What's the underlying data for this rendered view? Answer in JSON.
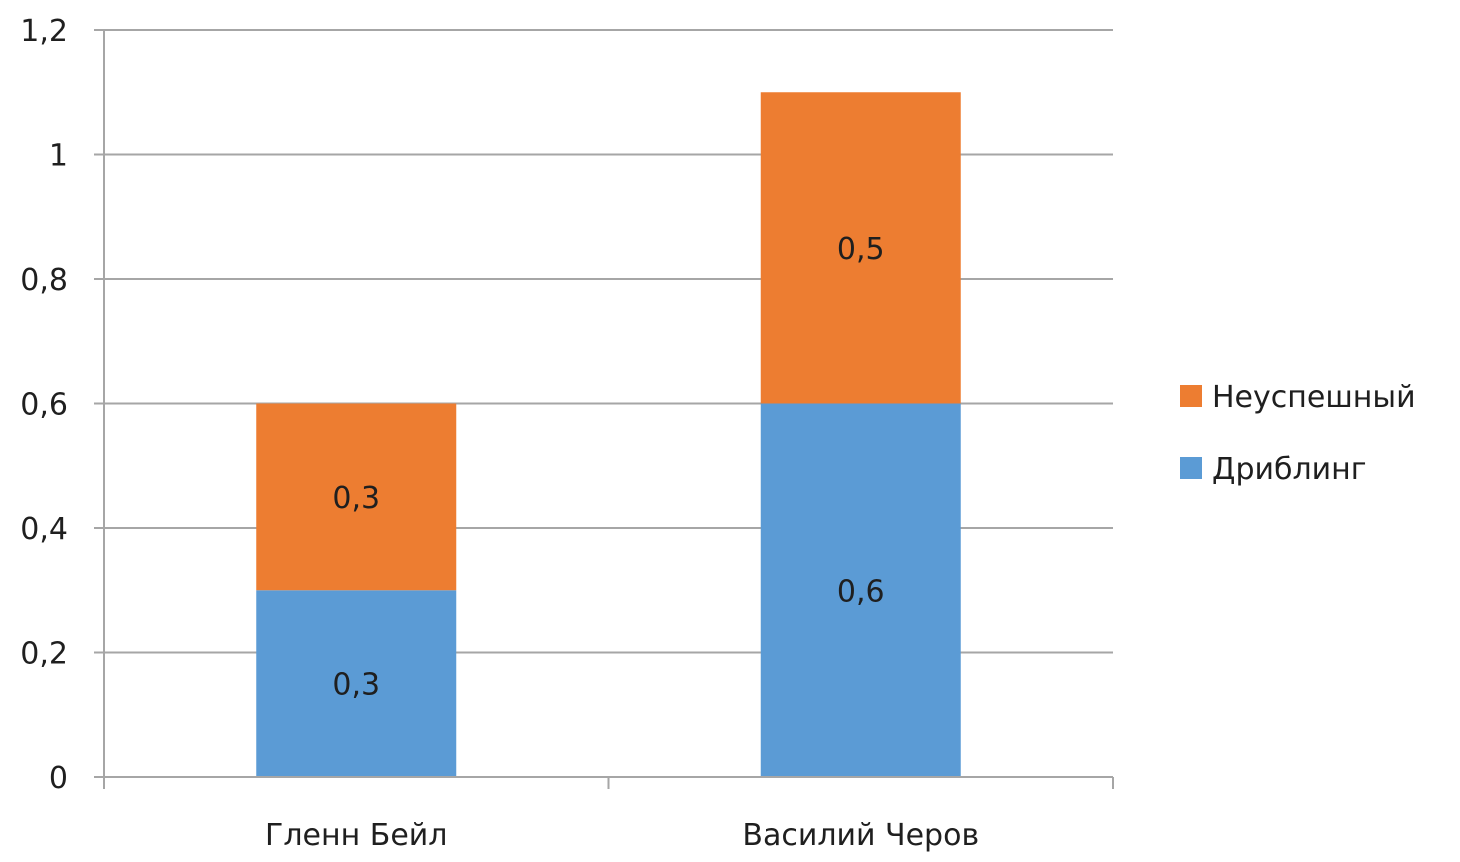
{
  "chart_data": {
    "type": "bar",
    "stacked": true,
    "categories": [
      "Гленн Бейл",
      "Василий Черов"
    ],
    "series": [
      {
        "name": "Дриблинг",
        "values": [
          0.3,
          0.6
        ],
        "labels": [
          "0,3",
          "0,6"
        ],
        "color": "#5B9BD5"
      },
      {
        "name": "Неуспешный",
        "values": [
          0.3,
          0.5
        ],
        "labels": [
          "0,3",
          "0,5"
        ],
        "color": "#ED7D31"
      }
    ],
    "title": "",
    "xlabel": "",
    "ylabel": "",
    "ylim": [
      0,
      1.2
    ],
    "yticks": [
      0,
      0.2,
      0.4,
      0.6,
      0.8,
      1,
      1.2
    ],
    "ytick_labels": [
      "0",
      "0,2",
      "0,4",
      "0,6",
      "0,8",
      "1",
      "1,2"
    ],
    "grid": true,
    "legend": {
      "position": "right",
      "order": [
        "Неуспешный",
        "Дриблинг"
      ]
    },
    "gridline_color": "#A6A6A6"
  }
}
